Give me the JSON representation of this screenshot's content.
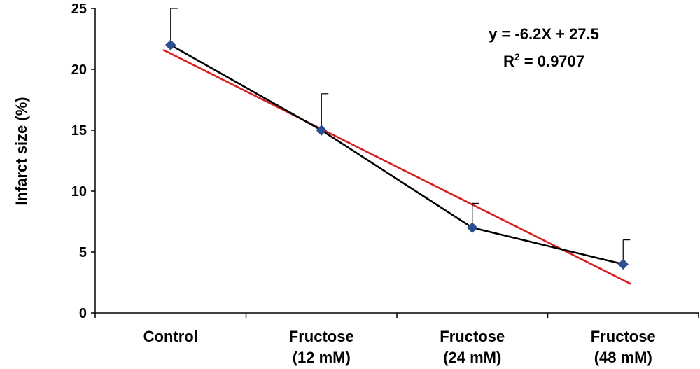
{
  "chart_data": {
    "type": "line",
    "categories": [
      "Control",
      "Fructose (12 mM)",
      "Fructose (24 mM)",
      "Fructose (48 mM)"
    ],
    "category_lines": [
      [
        "Control"
      ],
      [
        "Fructose",
        "(12 mM)"
      ],
      [
        "Fructose",
        "(24 mM)"
      ],
      [
        "Fructose",
        "(48 mM)"
      ]
    ],
    "series": [
      {
        "values": [
          22,
          15,
          7,
          4
        ],
        "error_upper": [
          3,
          3,
          2,
          2
        ],
        "color": "#000000",
        "marker_color": "#2E4F8F",
        "marker": "diamond"
      }
    ],
    "trendline": {
      "type": "linear",
      "slope": -6.2,
      "intercept": 27.5,
      "color": "#D92020",
      "equation": "y = -6.2X + 27.5",
      "r2_prefix": "R",
      "r2_sup": "2",
      "r2_suffix": " = 0.9707"
    },
    "ylabel": "Infarct  size (%)",
    "xlabel": "",
    "ylim": [
      0,
      25
    ],
    "yticks": [
      0,
      5,
      10,
      15,
      20,
      25
    ],
    "grid": false,
    "legend": "none"
  }
}
